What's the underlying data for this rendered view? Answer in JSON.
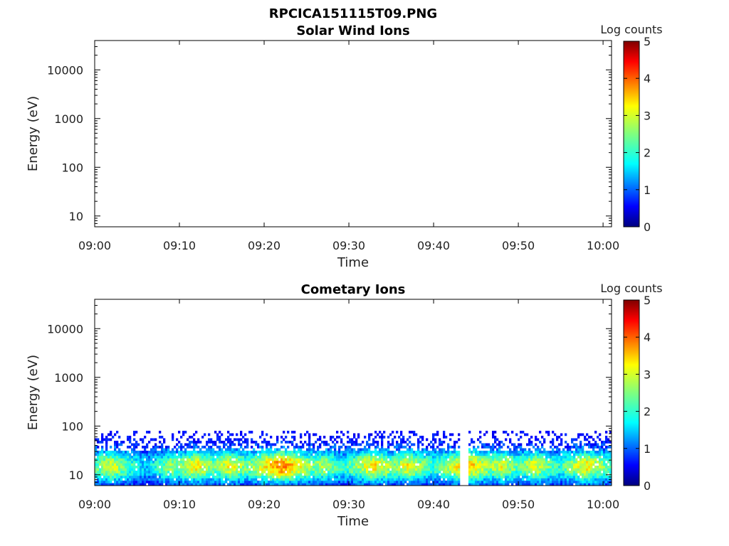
{
  "figure_title": "RPCICA151115T09.PNG",
  "chart_data": [
    {
      "type": "heatmap",
      "title": "Solar Wind Ions",
      "xlabel": "Time",
      "ylabel": "Energy (eV)",
      "x_ticks": [
        "09:00",
        "09:10",
        "09:20",
        "09:30",
        "09:40",
        "09:50",
        "10:00"
      ],
      "xlim": [
        "09:00",
        "10:01"
      ],
      "y_ticks": [
        "10",
        "100",
        "1000",
        "10000"
      ],
      "y_scale": "log",
      "ylim": [
        6,
        40000
      ],
      "colorbar": {
        "label": "Log counts",
        "range": [
          0,
          5
        ],
        "ticks": [
          "0",
          "1",
          "2",
          "3",
          "4",
          "5"
        ],
        "colormap": "jet"
      },
      "data_present": false
    },
    {
      "type": "heatmap",
      "title": "Cometary Ions",
      "xlabel": "Time",
      "ylabel": "Energy (eV)",
      "x_ticks": [
        "09:00",
        "09:10",
        "09:20",
        "09:30",
        "09:40",
        "09:50",
        "10:00"
      ],
      "xlim": [
        "09:00",
        "10:01"
      ],
      "y_ticks": [
        "10",
        "100",
        "1000",
        "10000"
      ],
      "y_scale": "log",
      "ylim": [
        6,
        40000
      ],
      "colorbar": {
        "label": "Log counts",
        "range": [
          0,
          5
        ],
        "ticks": [
          "0",
          "1",
          "2",
          "3",
          "4",
          "5"
        ],
        "colormap": "jet"
      },
      "data_present": true,
      "signal_energy_range_eV": [
        6,
        80
      ],
      "data_gap": [
        "09:43",
        "09:44"
      ],
      "intensity_peaks": [
        {
          "time": "09:02",
          "log_counts": 3.0
        },
        {
          "time": "09:09",
          "log_counts": 2.6
        },
        {
          "time": "09:12",
          "log_counts": 3.2
        },
        {
          "time": "09:16",
          "log_counts": 3.1
        },
        {
          "time": "09:22",
          "log_counts": 3.8
        },
        {
          "time": "09:27",
          "log_counts": 2.8
        },
        {
          "time": "09:33",
          "log_counts": 3.3
        },
        {
          "time": "09:37",
          "log_counts": 3.1
        },
        {
          "time": "09:44",
          "log_counts": 3.5
        },
        {
          "time": "09:48",
          "log_counts": 3.0
        },
        {
          "time": "09:52",
          "log_counts": 3.0
        },
        {
          "time": "09:58",
          "log_counts": 3.2
        }
      ]
    }
  ]
}
